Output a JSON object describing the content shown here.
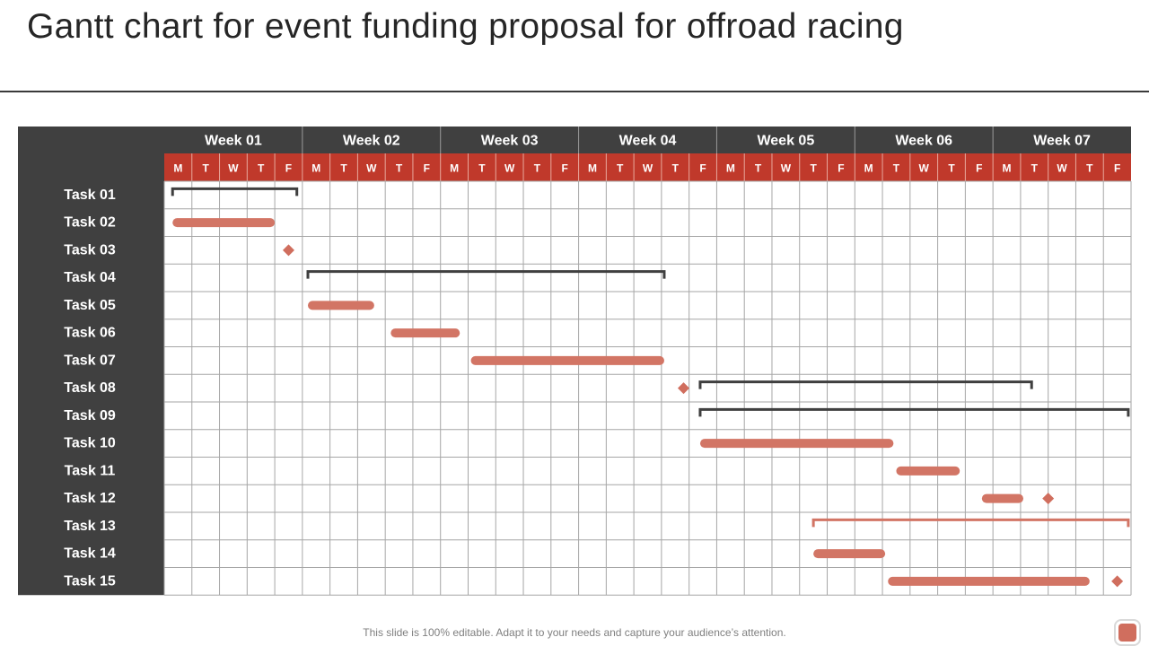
{
  "title": "Gantt chart for event funding proposal for offroad racing",
  "footer": "This slide is 100% editable. Adapt it to your needs and capture your audience’s attention.",
  "colors": {
    "sidebar": "#404040",
    "week_header": "#404040",
    "day_header": "#c0392b",
    "bar": "#d27565",
    "summary": "#3f3f3f",
    "summary_accent": "#d27565",
    "milestone": "#d06e5e",
    "grid": "#a6a6a6"
  },
  "chart_data": {
    "type": "gantt",
    "weeks": [
      "Week 01",
      "Week 02",
      "Week 03",
      "Week 04",
      "Week 05",
      "Week 06",
      "Week 07"
    ],
    "days": [
      "M",
      "T",
      "W",
      "T",
      "F"
    ],
    "tasks": [
      {
        "name": "Task 01",
        "kind": "summary",
        "start": 0.3,
        "end": 4.8
      },
      {
        "name": "Task 02",
        "kind": "bar",
        "start": 0.3,
        "end": 4.0
      },
      {
        "name": "Task 03",
        "kind": "milestone",
        "at": 4.5
      },
      {
        "name": "Task 04",
        "kind": "summary",
        "start": 5.2,
        "end": 18.1
      },
      {
        "name": "Task 05",
        "kind": "bar",
        "start": 5.2,
        "end": 7.6
      },
      {
        "name": "Task 06",
        "kind": "bar",
        "start": 8.2,
        "end": 10.7
      },
      {
        "name": "Task 07",
        "kind": "bar",
        "start": 11.1,
        "end": 18.1
      },
      {
        "name": "Task 08",
        "kind": "milestone",
        "at": 18.8
      },
      {
        "name": "Task 08",
        "kind": "summary",
        "start": 19.4,
        "end": 31.4
      },
      {
        "name": "Task 09",
        "kind": "summary",
        "start": 19.4,
        "end": 34.9
      },
      {
        "name": "Task 10",
        "kind": "bar",
        "start": 19.4,
        "end": 26.4
      },
      {
        "name": "Task 11",
        "kind": "bar",
        "start": 26.5,
        "end": 28.8
      },
      {
        "name": "Task 12",
        "kind": "bar",
        "start": 29.6,
        "end": 31.1
      },
      {
        "name": "Task 12",
        "kind": "milestone",
        "at": 32.0
      },
      {
        "name": "Task 13",
        "kind": "summary_accent",
        "start": 23.5,
        "end": 34.9
      },
      {
        "name": "Task 14",
        "kind": "bar",
        "start": 23.5,
        "end": 26.1
      },
      {
        "name": "Task 15",
        "kind": "bar",
        "start": 26.2,
        "end": 33.5
      },
      {
        "name": "Task 15",
        "kind": "milestone",
        "at": 34.5
      }
    ],
    "rows": [
      "Task 01",
      "Task 02",
      "Task 03",
      "Task 04",
      "Task 05",
      "Task 06",
      "Task 07",
      "Task 08",
      "Task 09",
      "Task 10",
      "Task 11",
      "Task 12",
      "Task 13",
      "Task 14",
      "Task 15"
    ]
  }
}
